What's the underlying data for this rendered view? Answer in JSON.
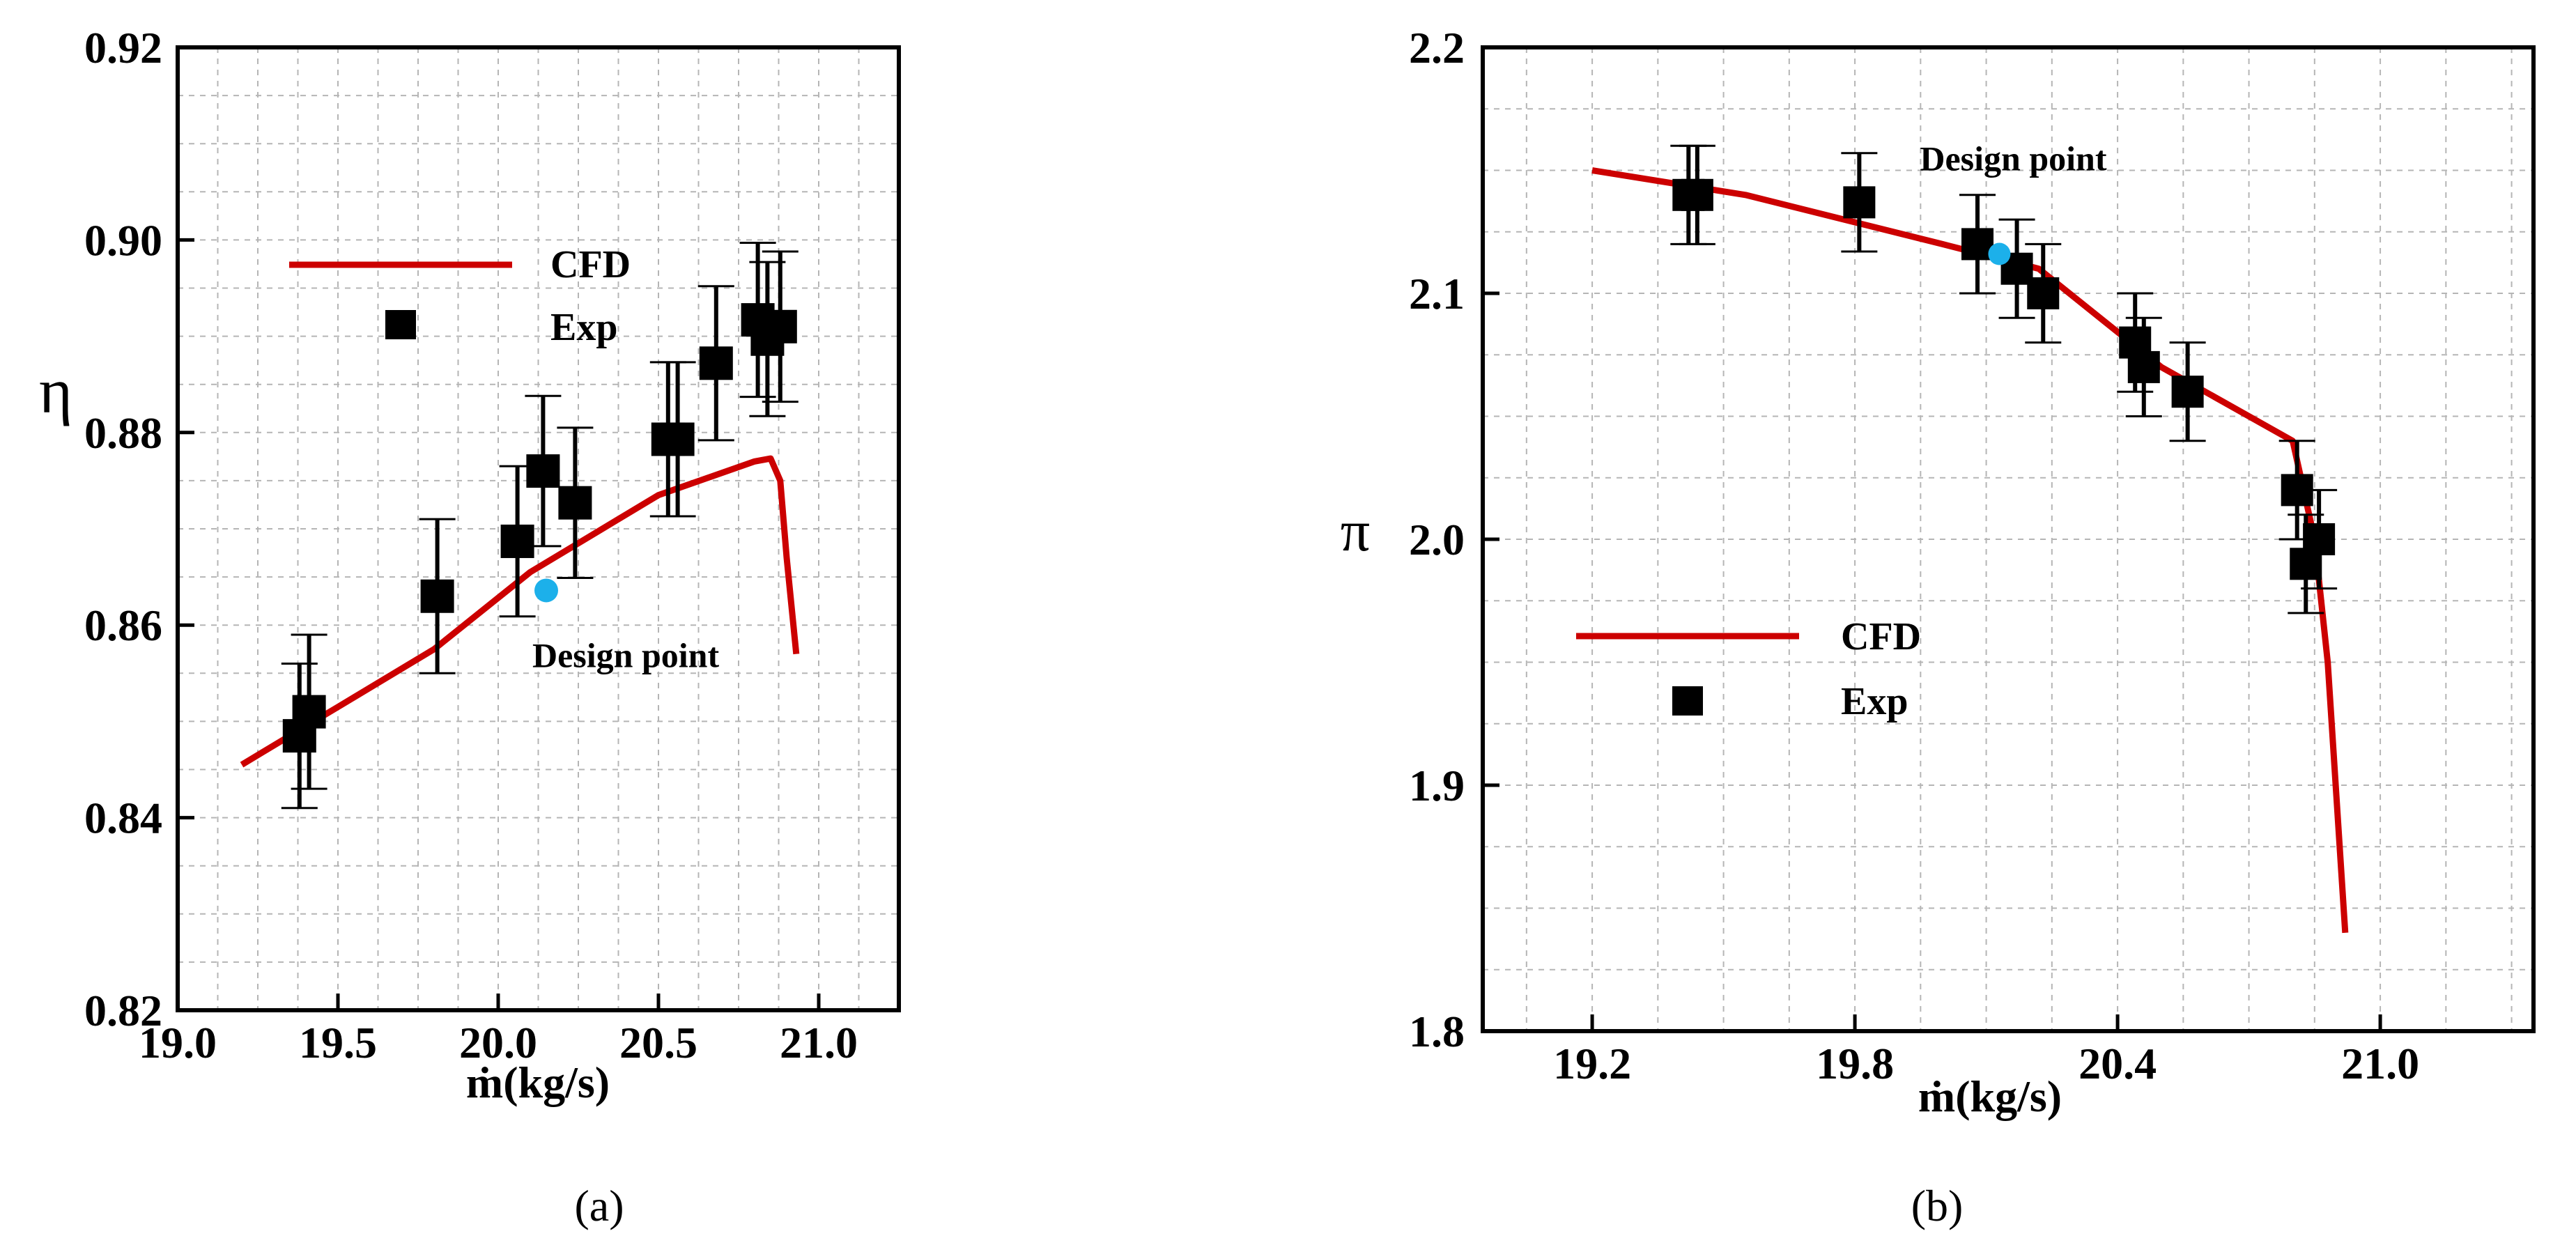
{
  "chart_data": [
    {
      "type": "scatter",
      "panel_label": "(a)",
      "xlabel": "ṁ(kg/s)",
      "ylabel": "η",
      "xlim": [
        19.0,
        21.25
      ],
      "ylim": [
        0.82,
        0.92
      ],
      "x_ticks": [
        19.0,
        19.5,
        20.0,
        20.5,
        21.0
      ],
      "x_tick_labels": [
        "19.0",
        "19.5",
        "20.0",
        "20.5",
        "21.0"
      ],
      "y_ticks": [
        0.82,
        0.84,
        0.86,
        0.88,
        0.9,
        0.92
      ],
      "y_tick_labels": [
        "0.82",
        "0.84",
        "0.86",
        "0.88",
        "0.90",
        "0.92"
      ],
      "grid": true,
      "legend": {
        "placement": "top-left",
        "entries": [
          "CFD",
          "Exp"
        ]
      },
      "series": [
        {
          "name": "CFD",
          "kind": "line",
          "color": "#cc0000",
          "x": [
            19.2,
            19.5,
            19.8,
            20.1,
            20.5,
            20.8,
            20.85,
            20.88,
            20.9,
            20.93
          ],
          "y": [
            0.8455,
            0.8515,
            0.8575,
            0.8655,
            0.8735,
            0.877,
            0.8773,
            0.875,
            0.867,
            0.857
          ]
        },
        {
          "name": "Exp",
          "kind": "scatter-errorbar",
          "color": "#000000",
          "x": [
            19.38,
            19.41,
            19.81,
            20.06,
            20.14,
            20.24,
            20.53,
            20.56,
            20.68,
            20.81,
            20.84,
            20.88
          ],
          "y": [
            0.8485,
            0.851,
            0.863,
            0.8687,
            0.876,
            0.8727,
            0.8793,
            0.8793,
            0.8872,
            0.8917,
            0.8897,
            0.891
          ],
          "err": [
            0.0075,
            0.008,
            0.008,
            0.0078,
            0.0078,
            0.0078,
            0.008,
            0.008,
            0.008,
            0.008,
            0.008,
            0.0078
          ]
        }
      ],
      "annotations": [
        {
          "text": "Design point",
          "x": 20.15,
          "y": 0.8636,
          "marker_color": "#1cb0ea"
        }
      ]
    },
    {
      "type": "scatter",
      "panel_label": "(b)",
      "xlabel": "ṁ(kg/s)",
      "ylabel": "π",
      "xlim": [
        18.95,
        21.35
      ],
      "ylim": [
        1.8,
        2.2
      ],
      "x_ticks": [
        19.2,
        19.8,
        20.4,
        21.0
      ],
      "x_tick_labels": [
        "19.2",
        "19.8",
        "20.4",
        "21.0"
      ],
      "y_ticks": [
        1.8,
        1.9,
        2.0,
        2.1,
        2.2
      ],
      "y_tick_labels": [
        "1.8",
        "1.9",
        "2.0",
        "2.1",
        "2.2"
      ],
      "grid": true,
      "legend": {
        "placement": "center-left",
        "entries": [
          "CFD",
          "Exp"
        ]
      },
      "series": [
        {
          "name": "CFD",
          "kind": "line",
          "color": "#cc0000",
          "x": [
            19.2,
            19.55,
            20.0,
            20.22,
            20.5,
            20.8,
            20.85,
            20.88,
            20.92
          ],
          "y": [
            2.15,
            2.14,
            2.12,
            2.11,
            2.07,
            2.04,
            2.0,
            1.95,
            1.84
          ]
        },
        {
          "name": "Exp",
          "kind": "scatter-errorbar",
          "color": "#000000",
          "x": [
            19.42,
            19.44,
            19.81,
            20.08,
            20.17,
            20.23,
            20.44,
            20.46,
            20.56,
            20.81,
            20.83,
            20.86
          ],
          "y": [
            2.14,
            2.14,
            2.137,
            2.12,
            2.11,
            2.1,
            2.08,
            2.07,
            2.06,
            2.02,
            1.99,
            2.0
          ],
          "err": [
            0.02,
            0.02,
            0.02,
            0.02,
            0.02,
            0.02,
            0.02,
            0.02,
            0.02,
            0.02,
            0.02,
            0.02
          ]
        }
      ],
      "annotations": [
        {
          "text": "Design point",
          "x": 20.13,
          "y": 2.116,
          "marker_color": "#1cb0ea"
        }
      ]
    }
  ]
}
